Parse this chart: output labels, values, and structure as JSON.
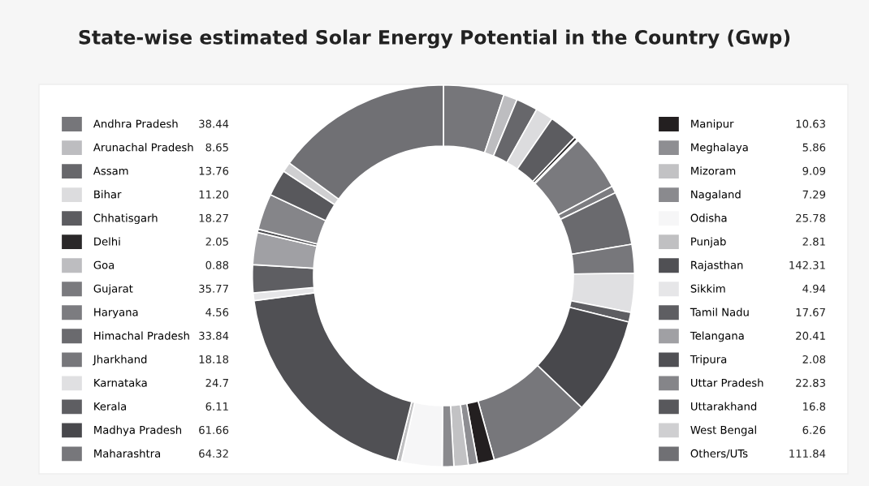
{
  "chart_data": {
    "type": "donut",
    "title": "State-wise estimated Solar Energy Potential in the Country (Gwp)",
    "categories": [
      "Andhra Pradesh",
      "Arunachal Pradesh",
      "Assam",
      "Bihar",
      "Chhatisgarh",
      "Delhi",
      "Goa",
      "Gujarat",
      "Haryana",
      "Himachal Pradesh",
      "Jharkhand",
      "Karnataka",
      "Kerala",
      "Madhya Pradesh",
      "Maharashtra",
      "Manipur",
      "Meghalaya",
      "Mizoram",
      "Nagaland",
      "Odisha",
      "Punjab",
      "Rajasthan",
      "Sikkim",
      "Tamil Nadu",
      "Telangana",
      "Tripura",
      "Uttar Pradesh",
      "Uttarakhand",
      "West Bengal",
      "Others/UTs"
    ],
    "values": [
      38.44,
      8.65,
      13.76,
      11.2,
      18.27,
      2.05,
      0.88,
      35.77,
      4.56,
      33.84,
      18.18,
      24.7,
      6.11,
      61.66,
      64.32,
      10.63,
      5.86,
      9.09,
      7.29,
      25.78,
      2.81,
      142.31,
      4.94,
      17.67,
      20.41,
      2.08,
      22.83,
      16.8,
      6.26,
      111.84
    ],
    "value_labels": [
      "38.44",
      "8.65",
      "13.76",
      "11.20",
      "18.27",
      "2.05",
      "0.88",
      "35.77",
      "4.56",
      "33.84",
      "18.18",
      "24.7",
      "6.11",
      "61.66",
      "64.32",
      "10.63",
      "5.86",
      "9.09",
      "7.29",
      "25.78",
      "2.81",
      "142.31",
      "4.94",
      "17.67",
      "20.41",
      "2.08",
      "22.83",
      "16.8",
      "6.26",
      "111.84"
    ],
    "colors": [
      "#76767a",
      "#bdbdc0",
      "#67676b",
      "#dcdcde",
      "#5c5c60",
      "#2a2829",
      "#bdbdc0",
      "#7a7a7e",
      "#7c7c80",
      "#6a6a6e",
      "#77777b",
      "#e0e0e2",
      "#5e5e62",
      "#48484c",
      "#77777b",
      "#231f20",
      "#8e8e92",
      "#c2c2c4",
      "#8a8a8e",
      "#f6f6f7",
      "#c0c0c2",
      "#505054",
      "#e6e6e8",
      "#5e5e62",
      "#a0a0a4",
      "#505054",
      "#858589",
      "#58585c",
      "#cfcfd1",
      "#707074"
    ],
    "legend": "left"
  }
}
